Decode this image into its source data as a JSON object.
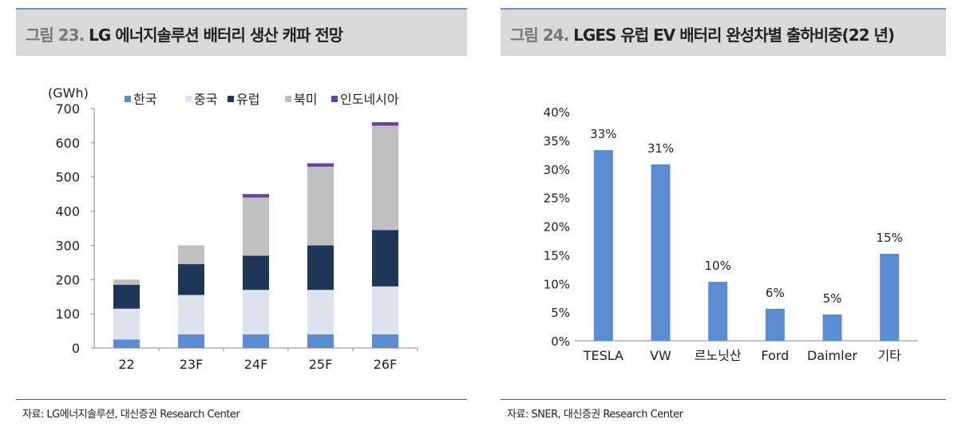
{
  "left": {
    "fig_no": "그림 23.",
    "title": "LG 에너지솔루션 배터리 생산 캐파 전망",
    "source": "자료: LG에너지솔루션, 대신증권 Research Center"
  },
  "right": {
    "fig_no": "그림 24.",
    "title": "LGES 유럽 EV 배터리 완성차별 출하비중(22 년)",
    "source": "자료: SNER, 대신증권 Research Center"
  },
  "chart_data": [
    {
      "type": "bar",
      "stacked": true,
      "ylabel": "(GWh)",
      "ylim": [
        0,
        700
      ],
      "yticks": [
        0,
        100,
        200,
        300,
        400,
        500,
        600,
        700
      ],
      "categories": [
        "22",
        "23F",
        "24F",
        "25F",
        "26F"
      ],
      "legend": "top",
      "series": [
        {
          "name": "한국",
          "color": "#5b8bd0",
          "values": [
            25,
            40,
            40,
            40,
            40
          ]
        },
        {
          "name": "중국",
          "color": "#dce3ef",
          "values": [
            90,
            115,
            130,
            130,
            140
          ]
        },
        {
          "name": "유럽",
          "color": "#1f3658",
          "values": [
            70,
            90,
            100,
            130,
            165
          ]
        },
        {
          "name": "북미",
          "color": "#bfbfbf",
          "values": [
            15,
            55,
            170,
            230,
            305
          ]
        },
        {
          "name": "인도네시아",
          "color": "#6b3fa0",
          "values": [
            0,
            0,
            10,
            10,
            10
          ]
        }
      ]
    },
    {
      "type": "bar",
      "ylim": [
        0,
        40
      ],
      "yticks": [
        "0%",
        "5%",
        "10%",
        "15%",
        "20%",
        "25%",
        "30%",
        "35%",
        "40%"
      ],
      "categories": [
        "TESLA",
        "VW",
        "르노닛산",
        "Ford",
        "Daimler",
        "기타"
      ],
      "values": [
        33.3,
        30.8,
        10.3,
        5.6,
        4.6,
        15.2
      ],
      "labels": [
        "33%",
        "31%",
        "10%",
        "6%",
        "5%",
        "15%"
      ],
      "color": "#5b8bd0"
    }
  ]
}
